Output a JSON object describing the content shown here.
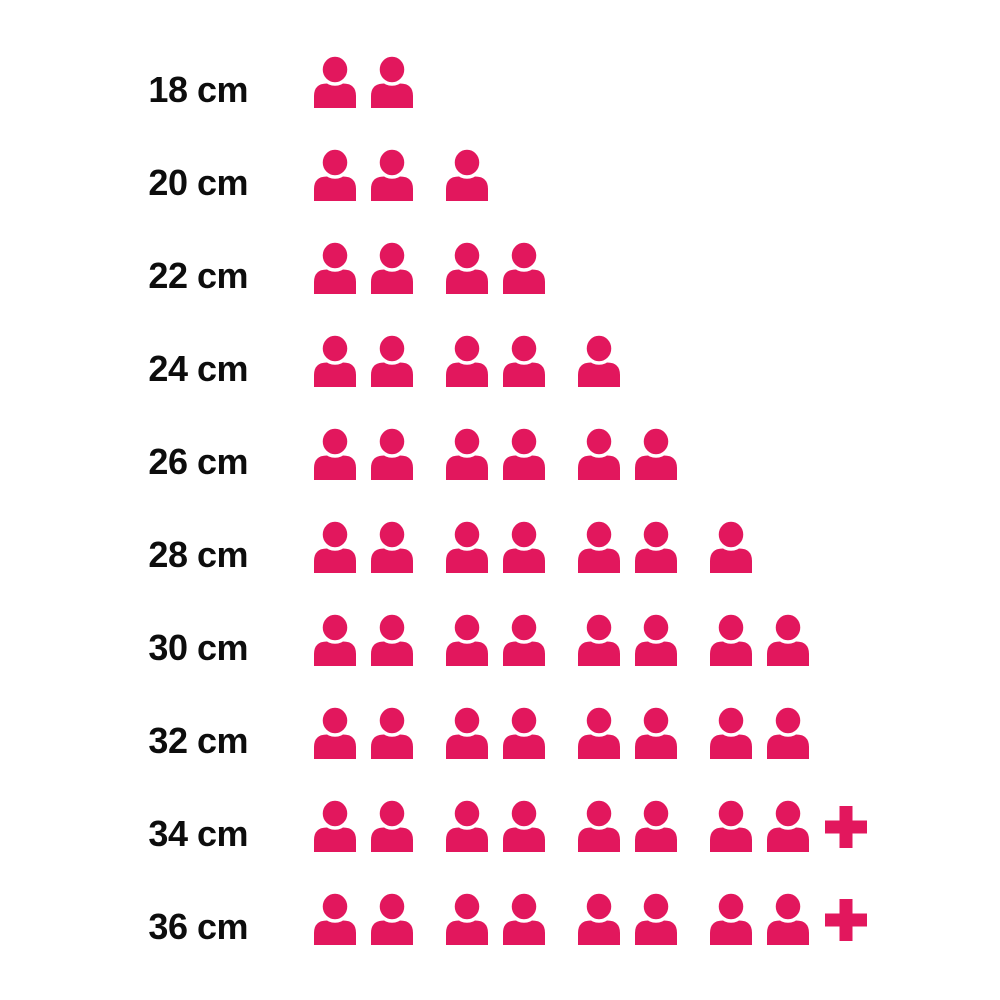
{
  "chart": {
    "icon_color": "#E2175D",
    "label_color": "#0D0D0D",
    "background_color": "#FFFFFF",
    "rows": [
      {
        "label": "18 cm",
        "count": 2,
        "plus": false
      },
      {
        "label": "20 cm",
        "count": 3,
        "plus": false
      },
      {
        "label": "22 cm",
        "count": 4,
        "plus": false
      },
      {
        "label": "24 cm",
        "count": 5,
        "plus": false
      },
      {
        "label": "26 cm",
        "count": 6,
        "plus": false
      },
      {
        "label": "28 cm",
        "count": 7,
        "plus": false
      },
      {
        "label": "30 cm",
        "count": 8,
        "plus": false
      },
      {
        "label": "32 cm",
        "count": 8,
        "plus": false
      },
      {
        "label": "34 cm",
        "count": 8,
        "plus": true
      },
      {
        "label": "36 cm",
        "count": 8,
        "plus": true
      }
    ]
  },
  "chart_data": {
    "type": "bar",
    "subtype": "pictogram",
    "pictogram_unit": "person",
    "categories": [
      "18 cm",
      "20 cm",
      "22 cm",
      "24 cm",
      "26 cm",
      "28 cm",
      "30 cm",
      "32 cm",
      "34 cm",
      "36 cm"
    ],
    "values": [
      2,
      3,
      4,
      5,
      6,
      7,
      8,
      8,
      8,
      8
    ],
    "plus_overflow": [
      false,
      false,
      false,
      false,
      false,
      false,
      false,
      false,
      true,
      true
    ],
    "title": "",
    "xlabel": "",
    "ylabel": "",
    "xlim": null,
    "ylim": [
      0,
      9
    ],
    "grid": false,
    "legend": false,
    "orientation": "horizontal",
    "icon_grouping": 2,
    "icon_color": "#E2175D"
  }
}
